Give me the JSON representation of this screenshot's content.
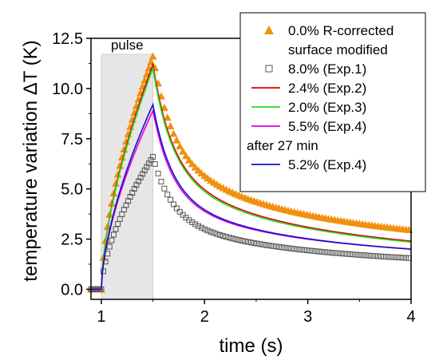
{
  "chart_data": {
    "type": "line",
    "xlabel": "time (s)",
    "ylabel": "temperature variation ΔT (K)",
    "xlim": [
      0.9,
      4.0
    ],
    "ylim": [
      -0.5,
      12.5
    ],
    "xticks": [
      1,
      2,
      3,
      4
    ],
    "xtick_labels": [
      "1",
      "2",
      "3",
      "4"
    ],
    "yticks": [
      0.0,
      2.5,
      5.0,
      7.5,
      10.0,
      12.5
    ],
    "ytick_labels": [
      "0.0",
      "2.5",
      "5.0",
      "7.5",
      "10.0",
      "12.5"
    ],
    "grid": false,
    "legend_position": "top-right",
    "annotation": {
      "text": "pulse",
      "x_start": 1.0,
      "x_end": 1.5,
      "shade_color": "#e6e6e6"
    },
    "legend_note": "after 27 min",
    "pulse": {
      "t_start": 1.0,
      "t_end": 1.5
    },
    "series": [
      {
        "name": "0.0% R-corrected surface modified",
        "legend_lines": [
          "0.0% R-corrected",
          "surface modified"
        ],
        "marker": "triangle",
        "color": "#f0900f",
        "peak": 11.6,
        "end_value": 2.95,
        "decay_rate": 2.4,
        "decay_fraction": 0.28
      },
      {
        "name": "8.0% (Exp.1)",
        "marker": "square-open",
        "color": "#555555",
        "peak": 6.6,
        "end_value": 1.55,
        "decay_rate": 3.0,
        "decay_fraction": 0.3
      },
      {
        "name": "2.4% (Exp.2)",
        "marker": "line",
        "color": "#dd0000",
        "peak": 11.2,
        "end_value": 2.4,
        "decay_rate": 2.8,
        "decay_fraction": 0.3
      },
      {
        "name": "2.0% (Exp.3)",
        "marker": "line",
        "color": "#22dd22",
        "peak": 11.0,
        "end_value": 2.35,
        "decay_rate": 2.8,
        "decay_fraction": 0.3
      },
      {
        "name": "5.5% (Exp.4)",
        "marker": "line",
        "color": "#e000e0",
        "peak": 8.9,
        "end_value": 2.0,
        "decay_rate": 3.2,
        "decay_fraction": 0.32
      },
      {
        "name": "5.2% (Exp.4)",
        "marker": "line",
        "color": "#1010cc",
        "peak": 9.2,
        "end_value": 2.0,
        "decay_rate": 3.2,
        "decay_fraction": 0.32
      }
    ]
  }
}
